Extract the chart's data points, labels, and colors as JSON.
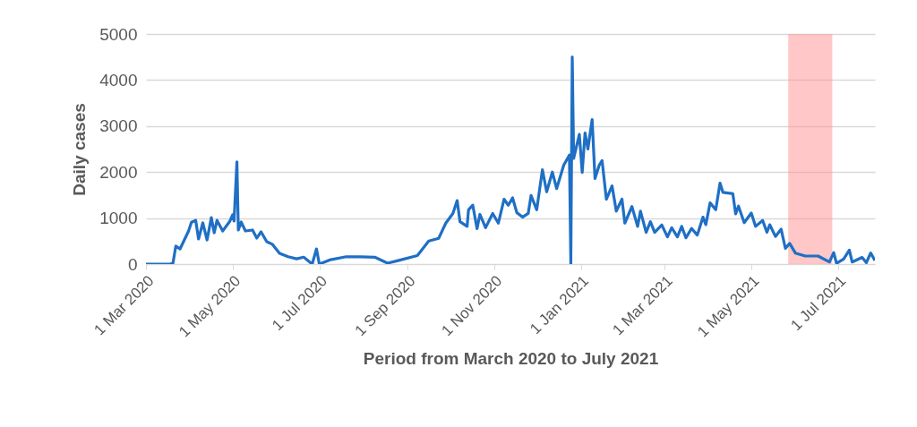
{
  "chart_data": {
    "type": "line",
    "xlabel": "Period from March 2020 to July 2021",
    "ylabel": "Daily cases",
    "x": [
      "2020-03-01",
      "2020-03-18",
      "2020-03-20",
      "2020-03-22",
      "2020-03-25",
      "2020-03-31",
      "2020-04-02",
      "2020-04-05",
      "2020-04-07",
      "2020-04-10",
      "2020-04-13",
      "2020-04-16",
      "2020-04-18",
      "2020-04-20",
      "2020-04-24",
      "2020-04-29",
      "2020-05-01",
      "2020-05-02",
      "2020-05-04",
      "2020-05-05",
      "2020-05-07",
      "2020-05-10",
      "2020-05-15",
      "2020-05-18",
      "2020-05-21",
      "2020-05-25",
      "2020-05-29",
      "2020-06-03",
      "2020-06-09",
      "2020-06-15",
      "2020-06-20",
      "2020-06-26",
      "2020-06-29",
      "2020-07-01",
      "2020-07-09",
      "2020-07-20",
      "2020-07-30",
      "2020-08-09",
      "2020-08-18",
      "2020-08-26",
      "2020-09-08",
      "2020-09-16",
      "2020-09-23",
      "2020-09-28",
      "2020-10-03",
      "2020-10-06",
      "2020-10-08",
      "2020-10-13",
      "2020-10-14",
      "2020-10-17",
      "2020-10-20",
      "2020-10-22",
      "2020-10-26",
      "2020-10-31",
      "2020-11-04",
      "2020-11-08",
      "2020-11-11",
      "2020-11-14",
      "2020-11-17",
      "2020-11-21",
      "2020-11-25",
      "2020-11-27",
      "2020-12-01",
      "2020-12-05",
      "2020-12-08",
      "2020-12-12",
      "2020-12-15",
      "2020-12-20",
      "2020-12-24",
      "2020-12-25",
      "2020-12-26",
      "2020-12-27",
      "2020-12-31",
      "2021-01-02",
      "2021-01-04",
      "2021-01-06",
      "2021-01-09",
      "2021-01-11",
      "2021-01-14",
      "2021-01-16",
      "2021-01-19",
      "2021-01-23",
      "2021-01-26",
      "2021-01-30",
      "2021-02-01",
      "2021-02-06",
      "2021-02-10",
      "2021-02-12",
      "2021-02-16",
      "2021-02-19",
      "2021-02-22",
      "2021-02-27",
      "2021-03-03",
      "2021-03-06",
      "2021-03-10",
      "2021-03-13",
      "2021-03-16",
      "2021-03-20",
      "2021-03-24",
      "2021-03-28",
      "2021-03-30",
      "2021-04-02",
      "2021-04-06",
      "2021-04-09",
      "2021-04-11",
      "2021-04-18",
      "2021-04-20",
      "2021-04-22",
      "2021-04-26",
      "2021-05-01",
      "2021-05-04",
      "2021-05-09",
      "2021-05-12",
      "2021-05-14",
      "2021-05-18",
      "2021-05-22",
      "2021-05-25",
      "2021-05-28",
      "2021-06-01",
      "2021-06-08",
      "2021-06-17",
      "2021-06-25",
      "2021-06-28",
      "2021-06-30",
      "2021-07-05",
      "2021-07-09",
      "2021-07-11",
      "2021-07-18",
      "2021-07-21",
      "2021-07-24",
      "2021-07-27"
    ],
    "series": [
      {
        "color": "#1f6fc5",
        "values": [
          0,
          0,
          20,
          390,
          330,
          720,
          910,
          950,
          545,
          895,
          525,
          1010,
          680,
          950,
          720,
          930,
          1070,
          935,
          2220,
          740,
          915,
          720,
          740,
          565,
          700,
          485,
          430,
          235,
          160,
          115,
          150,
          0,
          330,
          0,
          95,
          160,
          160,
          150,
          20,
          80,
          185,
          500,
          560,
          890,
          1100,
          1380,
          920,
          820,
          1180,
          1280,
          770,
          1080,
          790,
          1100,
          890,
          1410,
          1280,
          1440,
          1120,
          1020,
          1100,
          1490,
          1180,
          2050,
          1570,
          2000,
          1640,
          2150,
          2370,
          0,
          4500,
          2300,
          2820,
          1990,
          2850,
          2500,
          3140,
          1860,
          2150,
          2250,
          1410,
          1700,
          1150,
          1410,
          890,
          1250,
          820,
          1150,
          690,
          920,
          690,
          850,
          590,
          790,
          590,
          820,
          570,
          775,
          630,
          1020,
          855,
          1330,
          1180,
          1760,
          1560,
          1530,
          1090,
          1260,
          900,
          1110,
          820,
          950,
          690,
          855,
          600,
          760,
          340,
          450,
          240,
          175,
          175,
          45,
          250,
          15,
          110,
          305,
          45,
          145,
          30,
          240,
          80
        ]
      }
    ],
    "xlim": [
      "2020-03-01",
      "2021-07-27"
    ],
    "xticks": [
      {
        "value": "2020-03-01",
        "label": "1 Mar 2020"
      },
      {
        "value": "2020-05-01",
        "label": "1 May 2020"
      },
      {
        "value": "2020-07-01",
        "label": "1 Jul 2020"
      },
      {
        "value": "2020-09-01",
        "label": "1 Sep 2020"
      },
      {
        "value": "2020-11-01",
        "label": "1 Nov 2020"
      },
      {
        "value": "2021-01-01",
        "label": "1 Jan 2021"
      },
      {
        "value": "2021-03-01",
        "label": "1 Mar 2021"
      },
      {
        "value": "2021-05-01",
        "label": "1 May 2021"
      },
      {
        "value": "2021-07-01",
        "label": "1 Jul 2021"
      }
    ],
    "ylim": [
      0,
      5000
    ],
    "yticks": [
      0,
      1000,
      2000,
      3000,
      4000,
      5000
    ],
    "bands": [
      {
        "axis": "x",
        "from": "2021-05-27",
        "to": "2021-06-27",
        "color": "#ff8f8f"
      }
    ],
    "grid": "y",
    "marker": "none",
    "line_style": "solid"
  }
}
